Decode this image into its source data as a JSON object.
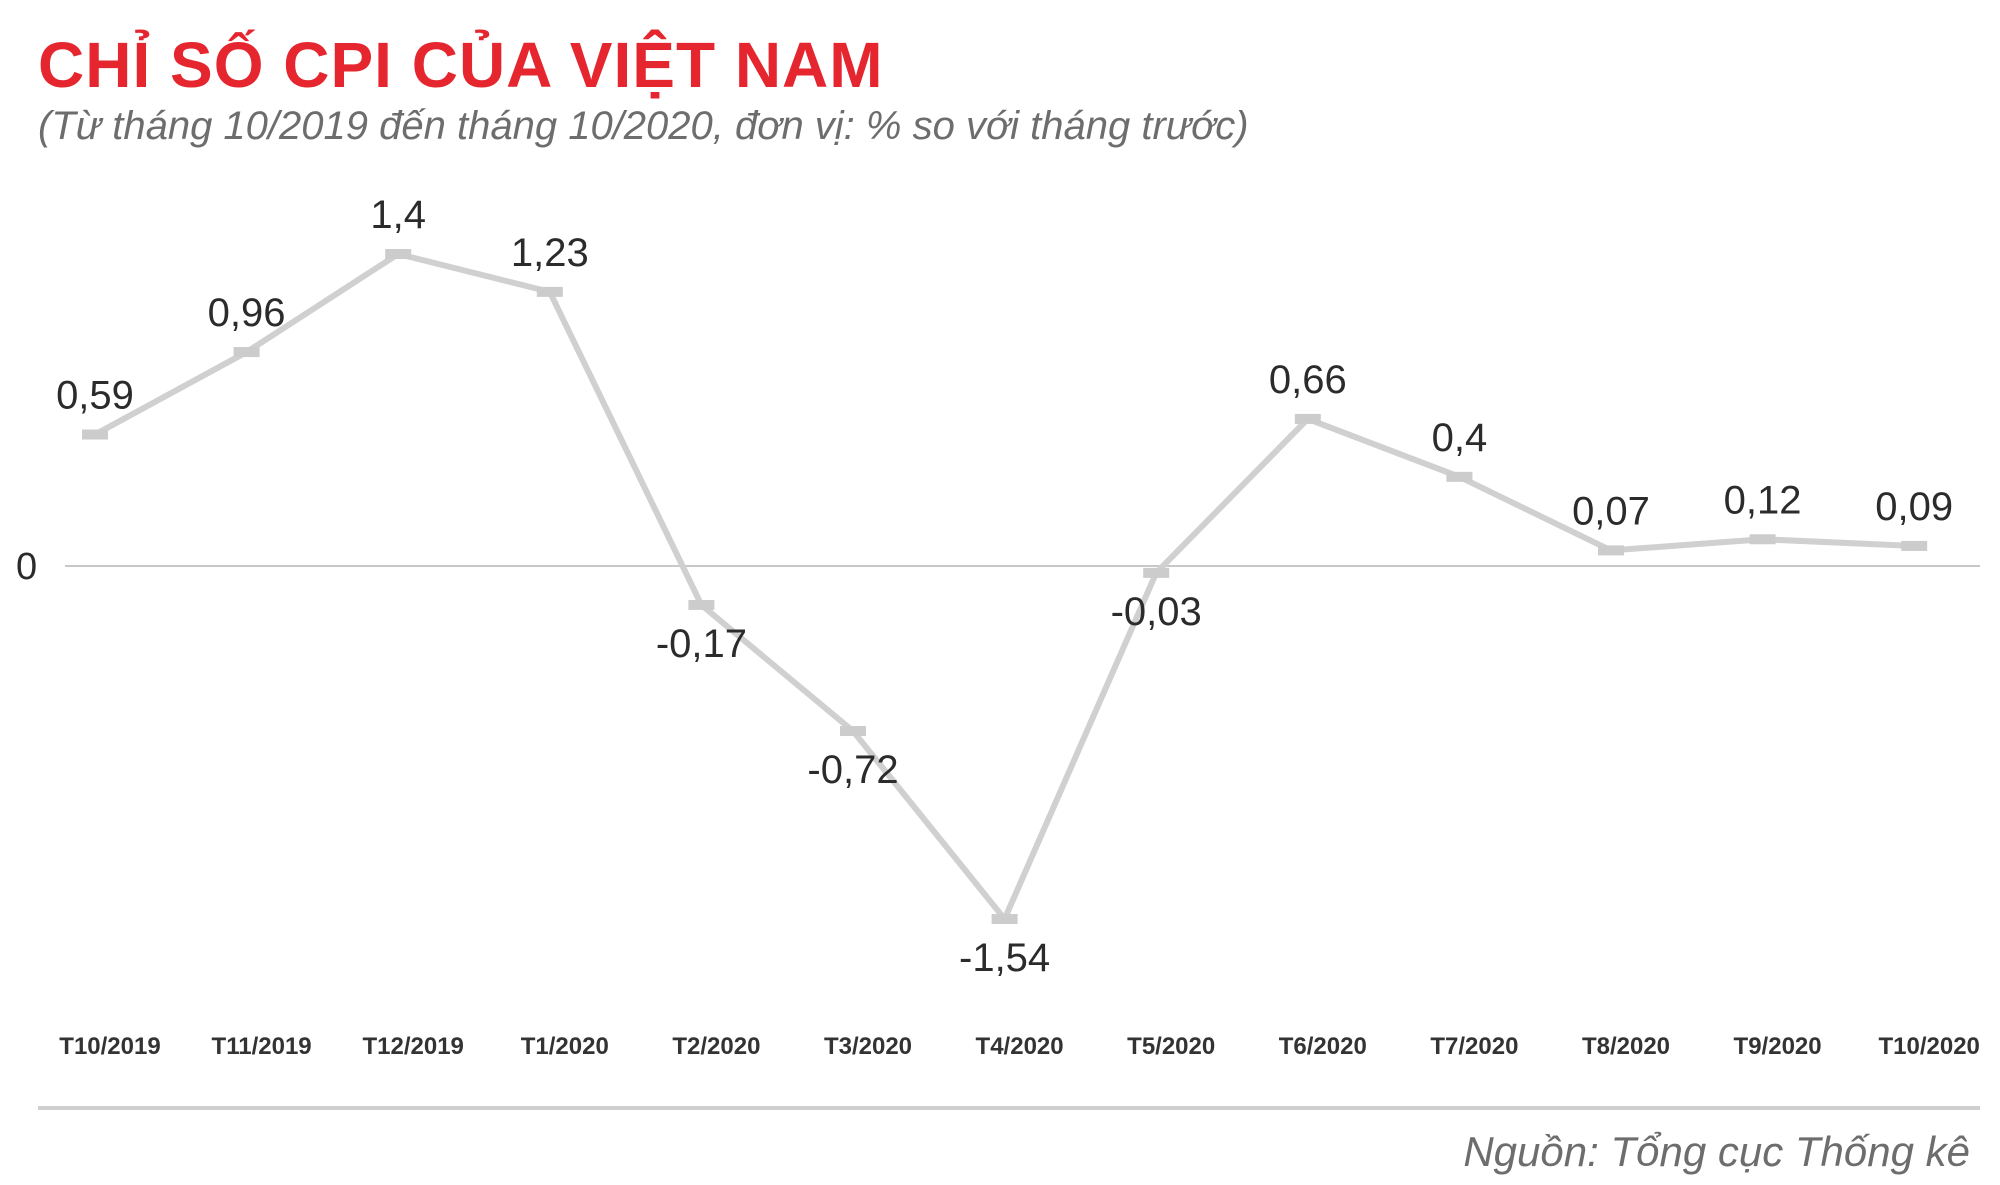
{
  "title": "CHỈ SỐ CPI CỦA VIỆT NAM",
  "subtitle": "(Từ tháng 10/2019 đến tháng 10/2020, đơn vị: % so với tháng trước)",
  "source": "Nguồn: Tổng cục Thống kê",
  "colors": {
    "title": "#e5262f",
    "highlight": "#e5262f",
    "line": "#d0d0d0",
    "marker": "#cccccc",
    "baseline": "#c8c8c8",
    "divider": "#cfcfcf"
  },
  "chart_data": {
    "type": "line",
    "categories": [
      "T10/2019",
      "T11/2019",
      "T12/2019",
      "T1/2020",
      "T2/2020",
      "T3/2020",
      "T4/2020",
      "T5/2020",
      "T6/2020",
      "T7/2020",
      "T8/2020",
      "T9/2020",
      "T10/2020"
    ],
    "values": [
      0.59,
      0.96,
      1.4,
      1.23,
      -0.17,
      -0.72,
      -1.54,
      -0.03,
      0.66,
      0.4,
      0.07,
      0.12,
      0.09
    ],
    "labels": [
      "0,59",
      "0,96",
      "1,4",
      "1,23",
      "-0,17",
      "-0,72",
      "-1,54",
      "-0,03",
      "0,66",
      "0,4",
      "0,07",
      "0,12",
      "0,09"
    ],
    "highlight_index": 12,
    "y_ticks": [
      {
        "value": 0,
        "label": "0"
      }
    ],
    "baseline": 0,
    "ylim": [
      -1.54,
      1.4
    ],
    "grid": false,
    "legend": "none"
  }
}
